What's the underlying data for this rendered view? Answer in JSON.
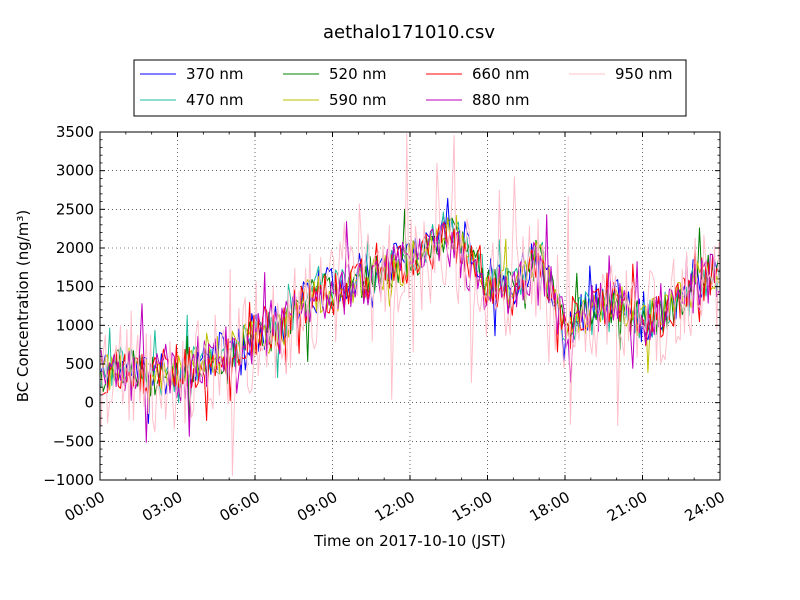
{
  "chart_data": {
    "type": "line",
    "title": "aethalo171010.csv",
    "xlabel": "Time on 2017-10-10 (JST)",
    "ylabel": "BC Concentration (ng/m³)",
    "x_start": "00:00",
    "x_end": "24:00",
    "x_step_minutes": 5,
    "xlim": [
      "00:00",
      "24:00"
    ],
    "ylim": [
      -1000,
      3500
    ],
    "xticks": [
      "00:00",
      "03:00",
      "06:00",
      "09:00",
      "12:00",
      "15:00",
      "18:00",
      "21:00",
      "24:00"
    ],
    "yticks": [
      -1000,
      -500,
      0,
      500,
      1000,
      1500,
      2000,
      2500,
      3000,
      3500
    ],
    "grid": true,
    "legend_position": "top",
    "series": [
      {
        "name": "370 nm",
        "color": "#0000ff",
        "baseline": [
          [
            0,
            400
          ],
          [
            1,
            500
          ],
          [
            2,
            350
          ],
          [
            3,
            380
          ],
          [
            4,
            550
          ],
          [
            5,
            700
          ],
          [
            6,
            900
          ],
          [
            7,
            1000
          ],
          [
            8,
            1400
          ],
          [
            9,
            1500
          ],
          [
            10,
            1650
          ],
          [
            11,
            1750
          ],
          [
            12,
            1950
          ],
          [
            13,
            2150
          ],
          [
            13.5,
            2450
          ],
          [
            14,
            2250
          ],
          [
            15,
            1650
          ],
          [
            16,
            1500
          ],
          [
            17,
            2000
          ],
          [
            18,
            1000
          ],
          [
            19,
            1250
          ],
          [
            20,
            1350
          ],
          [
            21,
            1050
          ],
          [
            22,
            1250
          ],
          [
            23,
            1600
          ],
          [
            24,
            1700
          ]
        ],
        "noise": 280,
        "spike_prob": 0.04,
        "seed": 11
      },
      {
        "name": "470 nm",
        "color": "#1abc9c",
        "baseline": [
          [
            0,
            400
          ],
          [
            1,
            480
          ],
          [
            2,
            340
          ],
          [
            3,
            370
          ],
          [
            4,
            540
          ],
          [
            5,
            680
          ],
          [
            6,
            880
          ],
          [
            7,
            980
          ],
          [
            8,
            1380
          ],
          [
            9,
            1470
          ],
          [
            10,
            1620
          ],
          [
            11,
            1720
          ],
          [
            12,
            1900
          ],
          [
            13,
            2100
          ],
          [
            13.5,
            2300
          ],
          [
            14,
            2100
          ],
          [
            15,
            1600
          ],
          [
            16,
            1450
          ],
          [
            17,
            1950
          ],
          [
            18,
            980
          ],
          [
            19,
            1230
          ],
          [
            20,
            1320
          ],
          [
            21,
            1030
          ],
          [
            22,
            1230
          ],
          [
            23,
            1570
          ],
          [
            24,
            1680
          ]
        ],
        "noise": 260,
        "spike_prob": 0.04,
        "seed": 23
      },
      {
        "name": "520 nm",
        "color": "#008000",
        "baseline": [
          [
            0,
            380
          ],
          [
            1,
            470
          ],
          [
            2,
            330
          ],
          [
            3,
            360
          ],
          [
            4,
            530
          ],
          [
            5,
            660
          ],
          [
            6,
            860
          ],
          [
            7,
            960
          ],
          [
            8,
            1350
          ],
          [
            9,
            1440
          ],
          [
            10,
            1600
          ],
          [
            11,
            1700
          ],
          [
            12,
            1850
          ],
          [
            13,
            2050
          ],
          [
            13.5,
            2200
          ],
          [
            14,
            2000
          ],
          [
            15,
            1550
          ],
          [
            16,
            1430
          ],
          [
            17,
            1900
          ],
          [
            18,
            960
          ],
          [
            19,
            1210
          ],
          [
            20,
            1300
          ],
          [
            21,
            1010
          ],
          [
            22,
            1210
          ],
          [
            23,
            1550
          ],
          [
            24,
            1660
          ]
        ],
        "noise": 260,
        "spike_prob": 0.04,
        "seed": 37
      },
      {
        "name": "590 nm",
        "color": "#bfbf00",
        "baseline": [
          [
            0,
            370
          ],
          [
            1,
            460
          ],
          [
            2,
            320
          ],
          [
            3,
            350
          ],
          [
            4,
            520
          ],
          [
            5,
            650
          ],
          [
            6,
            850
          ],
          [
            7,
            950
          ],
          [
            8,
            1330
          ],
          [
            9,
            1420
          ],
          [
            10,
            1580
          ],
          [
            11,
            1680
          ],
          [
            12,
            1820
          ],
          [
            13,
            2000
          ],
          [
            13.5,
            2150
          ],
          [
            14,
            1950
          ],
          [
            15,
            1520
          ],
          [
            16,
            1410
          ],
          [
            17,
            1880
          ],
          [
            18,
            950
          ],
          [
            19,
            1200
          ],
          [
            20,
            1290
          ],
          [
            21,
            1000
          ],
          [
            22,
            1200
          ],
          [
            23,
            1540
          ],
          [
            24,
            1650
          ]
        ],
        "noise": 270,
        "spike_prob": 0.04,
        "seed": 41
      },
      {
        "name": "660 nm",
        "color": "#ff0000",
        "baseline": [
          [
            0,
            360
          ],
          [
            1,
            450
          ],
          [
            2,
            310
          ],
          [
            3,
            340
          ],
          [
            4,
            510
          ],
          [
            5,
            640
          ],
          [
            6,
            840
          ],
          [
            7,
            940
          ],
          [
            8,
            1320
          ],
          [
            9,
            1400
          ],
          [
            10,
            1560
          ],
          [
            11,
            1660
          ],
          [
            12,
            1800
          ],
          [
            13,
            1980
          ],
          [
            13.5,
            2100
          ],
          [
            14,
            1900
          ],
          [
            15,
            1500
          ],
          [
            16,
            1400
          ],
          [
            17,
            1860
          ],
          [
            18,
            940
          ],
          [
            19,
            1190
          ],
          [
            20,
            1280
          ],
          [
            21,
            990
          ],
          [
            22,
            1190
          ],
          [
            23,
            1530
          ],
          [
            24,
            1640
          ]
        ],
        "noise": 300,
        "spike_prob": 0.05,
        "seed": 53
      },
      {
        "name": "880 nm",
        "color": "#bf00bf",
        "baseline": [
          [
            0,
            350
          ],
          [
            1,
            440
          ],
          [
            2,
            300
          ],
          [
            3,
            330
          ],
          [
            4,
            500
          ],
          [
            5,
            630
          ],
          [
            6,
            830
          ],
          [
            7,
            930
          ],
          [
            8,
            1310
          ],
          [
            9,
            1390
          ],
          [
            10,
            1550
          ],
          [
            11,
            1650
          ],
          [
            12,
            1790
          ],
          [
            13,
            1970
          ],
          [
            13.5,
            2100
          ],
          [
            14,
            1900
          ],
          [
            15,
            1490
          ],
          [
            16,
            1390
          ],
          [
            17,
            1850
          ],
          [
            18,
            930
          ],
          [
            19,
            1180
          ],
          [
            20,
            1270
          ],
          [
            21,
            980
          ],
          [
            22,
            1180
          ],
          [
            23,
            1520
          ],
          [
            24,
            1630
          ]
        ],
        "noise": 340,
        "spike_prob": 0.06,
        "seed": 67
      },
      {
        "name": "950 nm",
        "color": "#ffc0cb",
        "baseline": [
          [
            0,
            300
          ],
          [
            1,
            400
          ],
          [
            2,
            250
          ],
          [
            3,
            300
          ],
          [
            4,
            450
          ],
          [
            5,
            600
          ],
          [
            6,
            800
          ],
          [
            7,
            900
          ],
          [
            8,
            1300
          ],
          [
            9,
            1380
          ],
          [
            10,
            1550
          ],
          [
            11,
            1650
          ],
          [
            12,
            1780
          ],
          [
            13,
            1950
          ],
          [
            13.5,
            2050
          ],
          [
            14,
            1850
          ],
          [
            15,
            1480
          ],
          [
            16,
            1380
          ],
          [
            17,
            1800
          ],
          [
            18,
            900
          ],
          [
            19,
            1150
          ],
          [
            20,
            1250
          ],
          [
            21,
            950
          ],
          [
            22,
            1150
          ],
          [
            23,
            1500
          ],
          [
            24,
            1600
          ]
        ],
        "noise": 650,
        "spike_prob": 0.12,
        "seed": 79
      }
    ]
  }
}
